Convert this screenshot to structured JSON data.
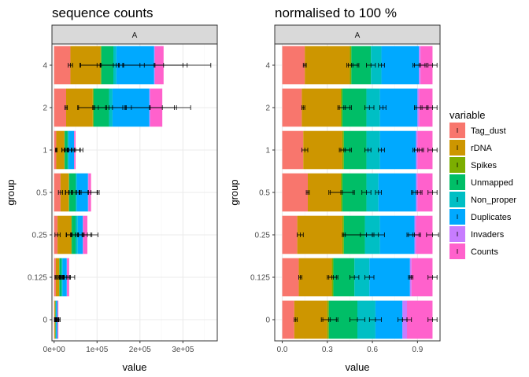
{
  "chart_data": [
    {
      "type": "bar",
      "stacked": true,
      "orientation": "horizontal",
      "title": "sequence counts",
      "facet": "A",
      "xlabel": "value",
      "ylabel": "group",
      "xlim": [
        -5000,
        380000
      ],
      "x_ticks": [
        0,
        100000,
        200000,
        300000
      ],
      "x_tick_labels": [
        "0e+00",
        "1e+05",
        "2e+05",
        "3e+05"
      ],
      "grid": true,
      "categories": [
        "0",
        "0.125",
        "0.25",
        "0.5",
        "1",
        "2",
        "4"
      ],
      "series": [
        {
          "name": "Tag_dust",
          "values": [
            1000,
            4000,
            8000,
            15000,
            5000,
            28000,
            38000
          ]
        },
        {
          "name": "rDNA",
          "values": [
            2000,
            8000,
            32000,
            19000,
            19000,
            62000,
            70000
          ]
        },
        {
          "name": "Spikes",
          "values": [
            100,
            500,
            1000,
            1000,
            500,
            2000,
            2000
          ]
        },
        {
          "name": "Unmapped",
          "values": [
            1000,
            5000,
            9000,
            15000,
            7000,
            36000,
            28000
          ]
        },
        {
          "name": "Non_proper",
          "values": [
            500,
            2000,
            5000,
            3000,
            2500,
            8000,
            7000
          ]
        },
        {
          "name": "Duplicates",
          "values": [
            3500,
            10000,
            12000,
            26000,
            12500,
            86000,
            88000
          ]
        },
        {
          "name": "Invaders",
          "values": [
            100,
            500,
            500,
            1000,
            500,
            2000,
            2000
          ]
        },
        {
          "name": "Counts",
          "values": [
            1800,
            5000,
            10000,
            6000,
            3000,
            28000,
            20000
          ]
        }
      ],
      "error_bars": [
        {
          "series": "Tag_dust",
          "center": [
            1000,
            4000,
            8000,
            15000,
            5000,
            28000,
            38000
          ],
          "low": [
            800,
            2000,
            2000,
            10000,
            3000,
            25000,
            33000
          ],
          "high": [
            1200,
            6000,
            14000,
            20000,
            7000,
            31000,
            43000
          ]
        },
        {
          "series": "rDNA",
          "center": [
            3000,
            12000,
            40000,
            34000,
            24000,
            90000,
            108000
          ],
          "low": [
            2000,
            9000,
            28000,
            26000,
            18000,
            55000,
            60000
          ],
          "high": [
            4000,
            15000,
            55000,
            42000,
            30000,
            120000,
            150000
          ]
        },
        {
          "series": "Spikes",
          "center": [
            3100,
            12500,
            41000,
            35000,
            24500,
            92000,
            110000
          ],
          "low": [
            2100,
            9500,
            29000,
            27000,
            18500,
            57000,
            62000
          ],
          "high": [
            4100,
            15500,
            56000,
            43000,
            30500,
            122000,
            152000
          ]
        },
        {
          "series": "Unmapped",
          "center": [
            4100,
            17500,
            50000,
            50000,
            31500,
            128000,
            138000
          ],
          "low": [
            3000,
            14000,
            38000,
            40000,
            24000,
            95000,
            100000
          ],
          "high": [
            5500,
            21000,
            65000,
            60000,
            40000,
            160000,
            200000
          ]
        },
        {
          "series": "Non_proper",
          "center": [
            4600,
            19500,
            55000,
            53000,
            34000,
            136000,
            145000
          ],
          "low": [
            3500,
            15500,
            42000,
            43000,
            26000,
            103000,
            107000
          ],
          "high": [
            6000,
            23500,
            70000,
            63000,
            42000,
            168000,
            210000
          ]
        },
        {
          "series": "Duplicates",
          "center": [
            8100,
            29500,
            67000,
            79000,
            46500,
            222000,
            233000
          ],
          "low": [
            5000,
            22000,
            50000,
            58000,
            33000,
            165000,
            160000
          ],
          "high": [
            11000,
            37000,
            85000,
            100000,
            60000,
            280000,
            300000
          ]
        },
        {
          "series": "Invaders",
          "center": [
            8200,
            30000,
            67500,
            80000,
            47000,
            224000,
            235000
          ],
          "low": [
            5000,
            22500,
            50500,
            59000,
            33500,
            167000,
            162000
          ],
          "high": [
            11500,
            38000,
            88000,
            101000,
            61000,
            285000,
            310000
          ]
        },
        {
          "series": "Counts",
          "center": [
            10000,
            35000,
            77500,
            86000,
            50000,
            252000,
            255000
          ],
          "low": [
            6000,
            24000,
            57000,
            60000,
            34000,
            180000,
            160000
          ],
          "high": [
            14000,
            48000,
            102000,
            105000,
            67000,
            318000,
            365000
          ]
        }
      ]
    },
    {
      "type": "bar",
      "stacked": true,
      "orientation": "horizontal",
      "title": "normalised to 100 %",
      "facet": "A",
      "xlabel": "value",
      "ylabel": "group",
      "xlim": [
        -0.05,
        1.05
      ],
      "x_ticks": [
        0,
        0.3,
        0.6,
        0.9
      ],
      "x_tick_labels": [
        "0.0",
        "0.3",
        "0.6",
        "0.9"
      ],
      "grid": true,
      "categories": [
        "0",
        "0.125",
        "0.25",
        "0.5",
        "1",
        "2",
        "4"
      ],
      "series": [
        {
          "name": "Tag_dust",
          "values": [
            0.08,
            0.11,
            0.1,
            0.17,
            0.14,
            0.13,
            0.15
          ]
        },
        {
          "name": "rDNA",
          "values": [
            0.22,
            0.22,
            0.3,
            0.22,
            0.26,
            0.26,
            0.3
          ]
        },
        {
          "name": "Spikes",
          "values": [
            0.01,
            0.01,
            0.01,
            0.01,
            0.01,
            0.01,
            0.01
          ]
        },
        {
          "name": "Unmapped",
          "values": [
            0.19,
            0.14,
            0.14,
            0.16,
            0.15,
            0.16,
            0.13
          ]
        },
        {
          "name": "Non_proper",
          "values": [
            0.12,
            0.1,
            0.1,
            0.08,
            0.09,
            0.09,
            0.07
          ]
        },
        {
          "name": "Duplicates",
          "values": [
            0.18,
            0.27,
            0.23,
            0.25,
            0.24,
            0.25,
            0.25
          ]
        },
        {
          "name": "Invaders",
          "values": [
            0.03,
            0.01,
            0.01,
            0.01,
            0.01,
            0.01,
            0.01
          ]
        },
        {
          "name": "Counts",
          "values": [
            0.17,
            0.14,
            0.11,
            0.1,
            0.1,
            0.09,
            0.08
          ]
        }
      ],
      "error_bars": [
        {
          "series": "Tag_dust",
          "center": [
            0.09,
            0.12,
            0.12,
            0.17,
            0.15,
            0.14,
            0.15
          ],
          "low": [
            0.08,
            0.11,
            0.1,
            0.16,
            0.13,
            0.13,
            0.14
          ],
          "high": [
            0.1,
            0.13,
            0.14,
            0.18,
            0.17,
            0.15,
            0.16
          ]
        },
        {
          "series": "rDNA",
          "center": [
            0.31,
            0.33,
            0.41,
            0.39,
            0.41,
            0.41,
            0.46
          ],
          "low": [
            0.26,
            0.3,
            0.4,
            0.31,
            0.38,
            0.37,
            0.43
          ],
          "high": [
            0.36,
            0.36,
            0.6,
            0.47,
            0.45,
            0.45,
            0.5
          ]
        },
        {
          "series": "Spikes",
          "center": [
            0.32,
            0.34,
            0.42,
            0.4,
            0.42,
            0.42,
            0.47
          ],
          "low": [
            0.27,
            0.31,
            0.4,
            0.32,
            0.39,
            0.38,
            0.44
          ],
          "high": [
            0.37,
            0.37,
            0.61,
            0.48,
            0.46,
            0.46,
            0.51
          ]
        },
        {
          "series": "Unmapped",
          "center": [
            0.5,
            0.48,
            0.56,
            0.56,
            0.57,
            0.58,
            0.59
          ],
          "low": [
            0.45,
            0.45,
            0.52,
            0.53,
            0.55,
            0.55,
            0.56
          ],
          "high": [
            0.55,
            0.51,
            0.6,
            0.59,
            0.59,
            0.61,
            0.62
          ]
        },
        {
          "series": "Non_proper",
          "center": [
            0.62,
            0.58,
            0.64,
            0.64,
            0.66,
            0.67,
            0.66
          ],
          "low": [
            0.58,
            0.55,
            0.6,
            0.62,
            0.64,
            0.65,
            0.64
          ],
          "high": [
            0.66,
            0.61,
            0.68,
            0.66,
            0.68,
            0.69,
            0.68
          ]
        },
        {
          "series": "Duplicates",
          "center": [
            0.8,
            0.85,
            0.87,
            0.89,
            0.9,
            0.92,
            0.91
          ],
          "low": [
            0.77,
            0.84,
            0.83,
            0.86,
            0.87,
            0.88,
            0.87
          ],
          "high": [
            0.83,
            0.86,
            0.91,
            0.92,
            0.93,
            0.96,
            0.95
          ]
        },
        {
          "series": "Invaders",
          "center": [
            0.83,
            0.86,
            0.88,
            0.9,
            0.91,
            0.93,
            0.92
          ],
          "low": [
            0.8,
            0.85,
            0.84,
            0.87,
            0.88,
            0.89,
            0.88
          ],
          "high": [
            0.86,
            0.87,
            0.92,
            0.93,
            0.94,
            0.97,
            0.96
          ]
        },
        {
          "series": "Counts",
          "center": [
            1.0,
            1.0,
            1.0,
            1.0,
            1.0,
            1.0,
            1.0
          ],
          "low": [
            0.97,
            0.97,
            0.96,
            0.97,
            0.97,
            0.97,
            0.97
          ],
          "high": [
            1.03,
            1.03,
            1.04,
            1.03,
            1.03,
            1.03,
            1.03
          ]
        }
      ]
    }
  ],
  "legend": {
    "title": "variable",
    "position": "right",
    "items": [
      {
        "label": "Tag_dust",
        "color": "#F8766D"
      },
      {
        "label": "rDNA",
        "color": "#CD9600"
      },
      {
        "label": "Spikes",
        "color": "#7CAE00"
      },
      {
        "label": "Unmapped",
        "color": "#00BE67"
      },
      {
        "label": "Non_proper",
        "color": "#00BFC4"
      },
      {
        "label": "Duplicates",
        "color": "#00A9FF"
      },
      {
        "label": "Invaders",
        "color": "#C77CFF"
      },
      {
        "label": "Counts",
        "color": "#FF61CC"
      }
    ]
  },
  "colors": {
    "strip_fill": "#d9d9d9",
    "grid_major": "#ebebeb",
    "grid_minor": "#f5f5f5",
    "panel_border": "#333333"
  }
}
